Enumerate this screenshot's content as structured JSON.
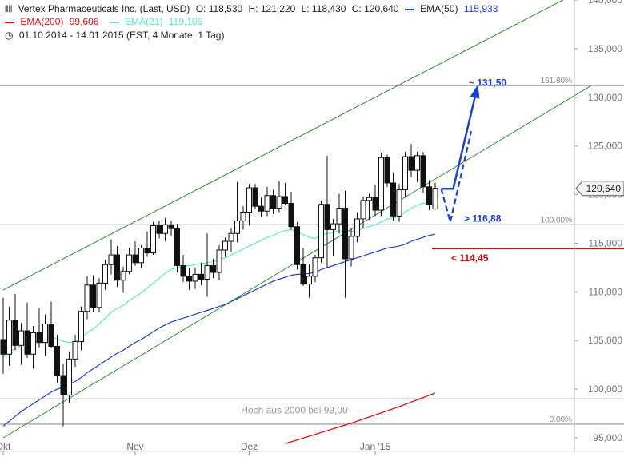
{
  "header": {
    "line1": {
      "symbol_icon": "candlestick-icon",
      "instrument": "Vertex Pharmaceuticals Inc. (Last, USD)",
      "open": "O: 118,530",
      "high": "H: 121,220",
      "low": "L: 118,430",
      "close": "C: 120,640",
      "ema50_label": "EMA(50)",
      "ema50_value": "115,933"
    },
    "line2": {
      "ema200_label": "EMA(200)",
      "ema200_value": "99,606",
      "ema21_label": "EMA(21)",
      "ema21_value": "119,106"
    },
    "line3": {
      "clock_icon": "clock-icon",
      "range": "01.10.2014 - 14.01.2015 (EST, 4 Monate, 1 Tag)"
    }
  },
  "colors": {
    "ema50": "#1f3fd6",
    "ema200": "#e01010",
    "ema21": "#5de8cc",
    "channel": "#2e8b2e",
    "projection": "#1a3fd6",
    "support": "#d01010",
    "fib": "#888888"
  },
  "chart_data": {
    "type": "candlestick",
    "title": "Vertex Pharmaceuticals Inc. (Last, USD)",
    "ylim": [
      95,
      140
    ],
    "yticks": [
      "95,000",
      "100,000",
      "105,000",
      "110,000",
      "115,000",
      "120,000",
      "125,000",
      "130,000",
      "135,000",
      "140,000"
    ],
    "ytick_values": [
      95,
      100,
      105,
      110,
      115,
      120,
      125,
      130,
      135,
      140
    ],
    "xticks": [
      {
        "label": "Okt",
        "bar": 0
      },
      {
        "label": "Nov",
        "bar": 22
      },
      {
        "label": "Dez",
        "bar": 41
      },
      {
        "label": "Jan '15",
        "bar": 62
      }
    ],
    "last_price_label": "120,640",
    "last_price": 120.64,
    "candles": [
      [
        105.1,
        109.4,
        101.6,
        103.6
      ],
      [
        103.6,
        108.5,
        102.4,
        107.1
      ],
      [
        107.1,
        109.8,
        104.0,
        104.5
      ],
      [
        104.5,
        106.8,
        102.5,
        106.0
      ],
      [
        106.0,
        108.9,
        103.2,
        103.6
      ],
      [
        103.6,
        106.5,
        102.1,
        105.8
      ],
      [
        105.8,
        108.3,
        104.3,
        104.8
      ],
      [
        104.8,
        107.7,
        103.4,
        106.7
      ],
      [
        106.7,
        109.0,
        104.2,
        104.4
      ],
      [
        104.4,
        105.6,
        100.6,
        101.4
      ],
      [
        101.4,
        102.6,
        96.2,
        99.4
      ],
      [
        99.4,
        103.9,
        98.6,
        103.1
      ],
      [
        103.1,
        105.6,
        102.3,
        104.9
      ],
      [
        104.9,
        108.5,
        104.0,
        108.0
      ],
      [
        108.0,
        111.6,
        107.2,
        110.7
      ],
      [
        110.7,
        111.7,
        107.9,
        108.4
      ],
      [
        108.4,
        111.4,
        107.9,
        110.9
      ],
      [
        110.9,
        113.3,
        110.2,
        112.8
      ],
      [
        112.8,
        115.4,
        111.8,
        113.8
      ],
      [
        113.8,
        114.7,
        110.5,
        111.2
      ],
      [
        111.2,
        112.6,
        109.9,
        112.1
      ],
      [
        112.1,
        114.5,
        111.8,
        113.8
      ],
      [
        113.8,
        115.2,
        112.7,
        113.0
      ],
      [
        113.0,
        114.8,
        112.4,
        114.5
      ],
      [
        114.5,
        116.2,
        113.6,
        114.0
      ],
      [
        114.0,
        117.2,
        113.8,
        116.8
      ],
      [
        116.8,
        117.3,
        115.5,
        116.0
      ],
      [
        116.0,
        117.6,
        115.2,
        116.9
      ],
      [
        116.9,
        117.3,
        115.8,
        116.5
      ],
      [
        116.5,
        117.0,
        112.0,
        112.7
      ],
      [
        112.7,
        113.8,
        111.0,
        111.6
      ],
      [
        111.6,
        112.4,
        110.2,
        111.1
      ],
      [
        111.1,
        112.5,
        110.3,
        111.8
      ],
      [
        111.8,
        113.0,
        110.7,
        111.3
      ],
      [
        111.3,
        116.0,
        109.5,
        112.7
      ],
      [
        112.7,
        113.4,
        111.4,
        112.0
      ],
      [
        112.0,
        114.8,
        111.2,
        114.3
      ],
      [
        114.3,
        115.6,
        113.6,
        115.2
      ],
      [
        115.2,
        116.6,
        114.1,
        116.0
      ],
      [
        116.0,
        121.3,
        115.1,
        117.3
      ],
      [
        117.3,
        118.8,
        116.4,
        118.2
      ],
      [
        118.2,
        121.1,
        116.8,
        120.7
      ],
      [
        120.7,
        121.1,
        118.5,
        118.8
      ],
      [
        118.8,
        119.7,
        117.7,
        118.3
      ],
      [
        118.3,
        120.8,
        117.8,
        119.9
      ],
      [
        119.9,
        120.5,
        118.0,
        118.6
      ],
      [
        118.6,
        121.4,
        118.2,
        119.8
      ],
      [
        119.8,
        121.2,
        118.9,
        119.1
      ],
      [
        119.1,
        120.3,
        116.4,
        116.7
      ],
      [
        116.7,
        117.2,
        112.3,
        112.8
      ],
      [
        112.8,
        114.5,
        110.6,
        110.8
      ],
      [
        110.8,
        112.8,
        109.4,
        111.6
      ],
      [
        111.6,
        113.8,
        111.0,
        113.5
      ],
      [
        113.5,
        119.4,
        113.0,
        119.0
      ],
      [
        119.0,
        124.0,
        112.4,
        116.4
      ],
      [
        116.4,
        117.5,
        113.7,
        117.0
      ],
      [
        117.0,
        120.1,
        116.0,
        118.6
      ],
      [
        118.6,
        120.4,
        109.4,
        113.4
      ],
      [
        113.4,
        116.5,
        112.6,
        115.7
      ],
      [
        115.7,
        118.2,
        115.1,
        117.5
      ],
      [
        117.5,
        119.8,
        116.6,
        119.4
      ],
      [
        119.4,
        120.1,
        117.4,
        119.7
      ],
      [
        119.7,
        121.0,
        117.8,
        118.4
      ],
      [
        118.4,
        124.3,
        117.8,
        123.8
      ],
      [
        123.8,
        124.1,
        120.8,
        121.2
      ],
      [
        121.2,
        122.3,
        117.3,
        117.8
      ],
      [
        117.8,
        121.1,
        117.2,
        120.5
      ],
      [
        120.5,
        124.4,
        119.7,
        123.9
      ],
      [
        123.9,
        125.2,
        121.8,
        122.5
      ],
      [
        122.5,
        124.4,
        121.3,
        124.0
      ],
      [
        124.0,
        124.4,
        120.2,
        120.8
      ],
      [
        120.8,
        121.5,
        118.4,
        119.0
      ],
      [
        118.53,
        121.22,
        118.43,
        120.64
      ]
    ],
    "ema21": [
      103.3,
      103.9,
      104.1,
      104.5,
      104.8,
      104.9,
      105.0,
      105.2,
      105.3,
      105.2,
      104.9,
      104.8,
      104.9,
      105.2,
      105.8,
      106.2,
      106.7,
      107.3,
      107.9,
      108.3,
      108.6,
      109.1,
      109.5,
      109.9,
      110.4,
      110.9,
      111.4,
      111.9,
      112.3,
      112.5,
      112.6,
      112.7,
      112.8,
      112.9,
      113.0,
      113.1,
      113.3,
      113.5,
      113.8,
      114.1,
      114.4,
      114.7,
      115.0,
      115.3,
      115.6,
      115.8,
      116.1,
      116.3,
      116.4,
      116.2,
      115.9,
      115.6,
      115.5,
      115.8,
      116.0,
      116.1,
      116.3,
      116.2,
      116.2,
      116.3,
      116.5,
      116.7,
      116.9,
      117.2,
      117.5,
      117.6,
      117.8,
      118.2,
      118.6,
      118.9,
      119.1,
      119.1,
      119.1
    ],
    "ema50": [
      96.2,
      96.7,
      97.2,
      97.7,
      98.1,
      98.5,
      98.9,
      99.3,
      99.7,
      100.0,
      100.2,
      100.5,
      100.8,
      101.2,
      101.7,
      102.1,
      102.5,
      102.9,
      103.3,
      103.7,
      104.0,
      104.4,
      104.8,
      105.1,
      105.5,
      105.9,
      106.3,
      106.6,
      106.9,
      107.1,
      107.3,
      107.5,
      107.7,
      107.9,
      108.1,
      108.3,
      108.5,
      108.7,
      109.0,
      109.3,
      109.6,
      109.9,
      110.2,
      110.5,
      110.8,
      111.1,
      111.3,
      111.5,
      111.7,
      111.8,
      111.8,
      111.9,
      112.0,
      112.3,
      112.5,
      112.7,
      112.9,
      113.1,
      113.3,
      113.5,
      113.7,
      113.9,
      114.1,
      114.3,
      114.5,
      114.6,
      114.7,
      114.9,
      115.2,
      115.4,
      115.6,
      115.8,
      115.93
    ],
    "ema200": [
      {
        "bar": 47,
        "value": 94.4
      },
      {
        "bar": 58,
        "value": 96.5
      },
      {
        "bar": 66,
        "value": 98.2
      },
      {
        "bar": 72,
        "value": 99.606
      }
    ],
    "channel_lines": [
      {
        "from": {
          "bar": 0,
          "value": 110.2
        },
        "to": {
          "bar": 98,
          "value": 141.5
        }
      },
      {
        "from": {
          "bar": 0,
          "value": 95.0
        },
        "to": {
          "bar": 98,
          "value": 131.2
        }
      }
    ],
    "fib_levels": [
      {
        "label": "161.80%",
        "value": 131.2
      },
      {
        "label": "100.00%",
        "value": 116.9
      },
      {
        "label": "0.00%",
        "value": 96.4
      }
    ],
    "hline_2000": {
      "label": "Hoch aus 2000 bei 99,00",
      "value": 99.0
    },
    "targets": [
      {
        "label": "~ 131,50",
        "value": 131.5,
        "color": "#1a3fd6"
      },
      {
        "label": "> 116,88",
        "value": 116.88,
        "color": "#1a3fd6"
      },
      {
        "label": "< 114,45",
        "value": 114.45,
        "color": "#d01010"
      }
    ],
    "projection_solid": [
      {
        "bar": 73,
        "value": 120.6
      },
      {
        "bar": 75,
        "value": 120.6
      },
      {
        "bar": 79,
        "value": 131.0
      }
    ],
    "projection_dashed": [
      {
        "bar": 73,
        "value": 120.6
      },
      {
        "bar": 74.5,
        "value": 117.2
      },
      {
        "bar": 78,
        "value": 126.5
      }
    ]
  }
}
